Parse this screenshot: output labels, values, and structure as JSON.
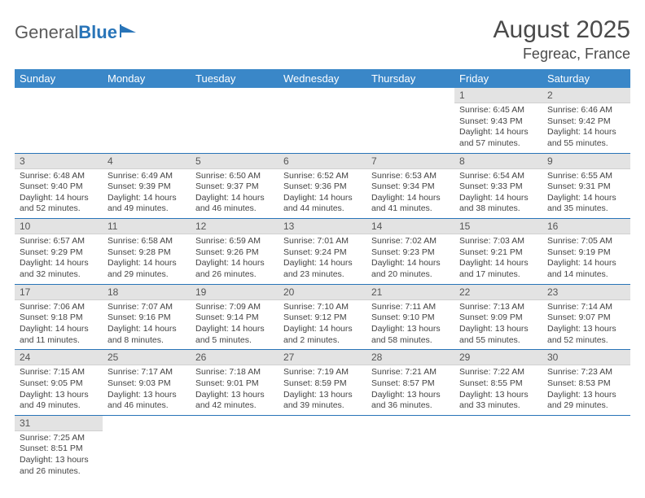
{
  "brand": {
    "part1": "General",
    "part2": "Blue"
  },
  "title": "August 2025",
  "location": "Fegreac, France",
  "colors": {
    "header_bg": "#3a87c8",
    "header_text": "#ffffff",
    "daynum_bg": "#e3e3e3",
    "border": "#2874b8",
    "text": "#3a3a3a"
  },
  "weekdays": [
    "Sunday",
    "Monday",
    "Tuesday",
    "Wednesday",
    "Thursday",
    "Friday",
    "Saturday"
  ],
  "weeks": [
    [
      null,
      null,
      null,
      null,
      null,
      {
        "n": "1",
        "sunrise": "6:45 AM",
        "sunset": "9:43 PM",
        "daylight": "14 hours and 57 minutes."
      },
      {
        "n": "2",
        "sunrise": "6:46 AM",
        "sunset": "9:42 PM",
        "daylight": "14 hours and 55 minutes."
      }
    ],
    [
      {
        "n": "3",
        "sunrise": "6:48 AM",
        "sunset": "9:40 PM",
        "daylight": "14 hours and 52 minutes."
      },
      {
        "n": "4",
        "sunrise": "6:49 AM",
        "sunset": "9:39 PM",
        "daylight": "14 hours and 49 minutes."
      },
      {
        "n": "5",
        "sunrise": "6:50 AM",
        "sunset": "9:37 PM",
        "daylight": "14 hours and 46 minutes."
      },
      {
        "n": "6",
        "sunrise": "6:52 AM",
        "sunset": "9:36 PM",
        "daylight": "14 hours and 44 minutes."
      },
      {
        "n": "7",
        "sunrise": "6:53 AM",
        "sunset": "9:34 PM",
        "daylight": "14 hours and 41 minutes."
      },
      {
        "n": "8",
        "sunrise": "6:54 AM",
        "sunset": "9:33 PM",
        "daylight": "14 hours and 38 minutes."
      },
      {
        "n": "9",
        "sunrise": "6:55 AM",
        "sunset": "9:31 PM",
        "daylight": "14 hours and 35 minutes."
      }
    ],
    [
      {
        "n": "10",
        "sunrise": "6:57 AM",
        "sunset": "9:29 PM",
        "daylight": "14 hours and 32 minutes."
      },
      {
        "n": "11",
        "sunrise": "6:58 AM",
        "sunset": "9:28 PM",
        "daylight": "14 hours and 29 minutes."
      },
      {
        "n": "12",
        "sunrise": "6:59 AM",
        "sunset": "9:26 PM",
        "daylight": "14 hours and 26 minutes."
      },
      {
        "n": "13",
        "sunrise": "7:01 AM",
        "sunset": "9:24 PM",
        "daylight": "14 hours and 23 minutes."
      },
      {
        "n": "14",
        "sunrise": "7:02 AM",
        "sunset": "9:23 PM",
        "daylight": "14 hours and 20 minutes."
      },
      {
        "n": "15",
        "sunrise": "7:03 AM",
        "sunset": "9:21 PM",
        "daylight": "14 hours and 17 minutes."
      },
      {
        "n": "16",
        "sunrise": "7:05 AM",
        "sunset": "9:19 PM",
        "daylight": "14 hours and 14 minutes."
      }
    ],
    [
      {
        "n": "17",
        "sunrise": "7:06 AM",
        "sunset": "9:18 PM",
        "daylight": "14 hours and 11 minutes."
      },
      {
        "n": "18",
        "sunrise": "7:07 AM",
        "sunset": "9:16 PM",
        "daylight": "14 hours and 8 minutes."
      },
      {
        "n": "19",
        "sunrise": "7:09 AM",
        "sunset": "9:14 PM",
        "daylight": "14 hours and 5 minutes."
      },
      {
        "n": "20",
        "sunrise": "7:10 AM",
        "sunset": "9:12 PM",
        "daylight": "14 hours and 2 minutes."
      },
      {
        "n": "21",
        "sunrise": "7:11 AM",
        "sunset": "9:10 PM",
        "daylight": "13 hours and 58 minutes."
      },
      {
        "n": "22",
        "sunrise": "7:13 AM",
        "sunset": "9:09 PM",
        "daylight": "13 hours and 55 minutes."
      },
      {
        "n": "23",
        "sunrise": "7:14 AM",
        "sunset": "9:07 PM",
        "daylight": "13 hours and 52 minutes."
      }
    ],
    [
      {
        "n": "24",
        "sunrise": "7:15 AM",
        "sunset": "9:05 PM",
        "daylight": "13 hours and 49 minutes."
      },
      {
        "n": "25",
        "sunrise": "7:17 AM",
        "sunset": "9:03 PM",
        "daylight": "13 hours and 46 minutes."
      },
      {
        "n": "26",
        "sunrise": "7:18 AM",
        "sunset": "9:01 PM",
        "daylight": "13 hours and 42 minutes."
      },
      {
        "n": "27",
        "sunrise": "7:19 AM",
        "sunset": "8:59 PM",
        "daylight": "13 hours and 39 minutes."
      },
      {
        "n": "28",
        "sunrise": "7:21 AM",
        "sunset": "8:57 PM",
        "daylight": "13 hours and 36 minutes."
      },
      {
        "n": "29",
        "sunrise": "7:22 AM",
        "sunset": "8:55 PM",
        "daylight": "13 hours and 33 minutes."
      },
      {
        "n": "30",
        "sunrise": "7:23 AM",
        "sunset": "8:53 PM",
        "daylight": "13 hours and 29 minutes."
      }
    ],
    [
      {
        "n": "31",
        "sunrise": "7:25 AM",
        "sunset": "8:51 PM",
        "daylight": "13 hours and 26 minutes."
      },
      null,
      null,
      null,
      null,
      null,
      null
    ]
  ],
  "labels": {
    "sunrise": "Sunrise:",
    "sunset": "Sunset:",
    "daylight": "Daylight:"
  }
}
